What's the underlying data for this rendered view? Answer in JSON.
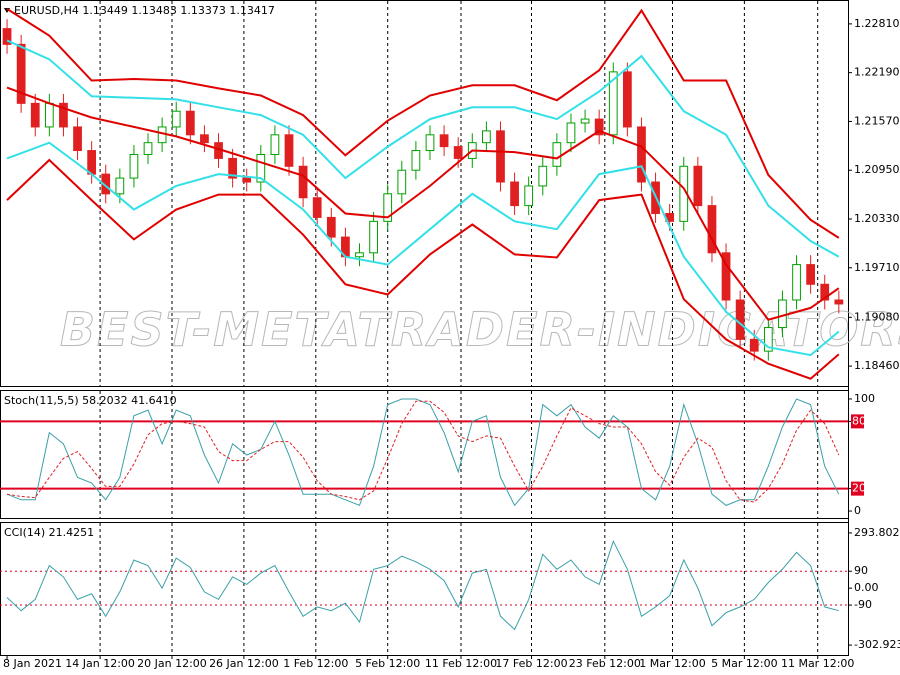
{
  "chart_data": [
    {
      "type": "candlestick",
      "title": "EURUSD,H4 1.13449 1.13483 1.13373 1.13417",
      "watermark": "BEST-METATRADER-INDICATORS.COM",
      "up_color": "#00a000",
      "down_color": "#e02020",
      "open": [
        1.2275,
        1.2255,
        1.218,
        1.215,
        1.218,
        1.215,
        1.212,
        1.209,
        1.2065,
        1.2085,
        1.2115,
        1.213,
        1.215,
        1.217,
        1.214,
        1.213,
        1.211,
        1.2085,
        1.208,
        1.2115,
        1.214,
        1.21,
        1.206,
        1.2035,
        1.201,
        1.1985,
        1.199,
        1.203,
        1.2065,
        1.2095,
        1.212,
        1.214,
        1.2125,
        1.211,
        1.213,
        1.2145,
        1.208,
        1.205,
        1.2075,
        1.21,
        1.213,
        1.2155,
        1.216,
        1.214,
        1.222,
        1.215,
        1.208,
        1.204,
        1.203,
        1.21,
        1.205,
        1.199,
        1.193,
        1.188,
        1.1865,
        1.1895,
        1.193,
        1.1975,
        1.195,
        1.193
      ],
      "high": [
        1.2287,
        1.2267,
        1.2192,
        1.2192,
        1.2192,
        1.2162,
        1.2132,
        1.2102,
        1.2097,
        1.2127,
        1.2142,
        1.2162,
        1.2182,
        1.2182,
        1.2152,
        1.2142,
        1.2122,
        1.2097,
        1.2127,
        1.2152,
        1.2152,
        1.2112,
        1.2072,
        1.2047,
        1.2022,
        1.2002,
        1.2042,
        1.2077,
        1.2107,
        1.2132,
        1.2152,
        1.2152,
        1.2137,
        1.2142,
        1.2157,
        1.2157,
        1.2092,
        1.2087,
        1.2112,
        1.2142,
        1.2167,
        1.2172,
        1.2172,
        1.2232,
        1.2232,
        1.2162,
        1.2092,
        1.2052,
        1.2112,
        1.2112,
        1.2062,
        1.2002,
        1.1942,
        1.1892,
        1.1907,
        1.1942,
        1.1987,
        1.1987,
        1.1962,
        1.1942
      ],
      "low": [
        1.2243,
        1.2168,
        1.2138,
        1.2138,
        1.2138,
        1.2108,
        1.2078,
        1.2053,
        1.2053,
        1.2073,
        1.2103,
        1.2118,
        1.2138,
        1.2128,
        1.2118,
        1.2098,
        1.2073,
        1.2068,
        1.2068,
        1.2103,
        1.2088,
        1.2048,
        1.2023,
        1.1998,
        1.1973,
        1.1973,
        1.1978,
        1.2018,
        1.2053,
        1.2083,
        1.2108,
        1.2113,
        1.2098,
        1.2098,
        1.2118,
        1.2068,
        1.2038,
        1.2038,
        1.2063,
        1.2088,
        1.2118,
        1.2143,
        1.2128,
        1.2128,
        1.2138,
        1.2068,
        1.2028,
        1.2018,
        1.2018,
        1.2038,
        1.1978,
        1.1918,
        1.1868,
        1.1853,
        1.1853,
        1.1883,
        1.1918,
        1.1938,
        1.1918,
        1.1913
      ],
      "close": [
        1.2255,
        1.218,
        1.215,
        1.218,
        1.215,
        1.212,
        1.209,
        1.2065,
        1.2085,
        1.2115,
        1.213,
        1.215,
        1.217,
        1.214,
        1.213,
        1.211,
        1.2085,
        1.208,
        1.2115,
        1.214,
        1.21,
        1.206,
        1.2035,
        1.201,
        1.1985,
        1.199,
        1.203,
        1.2065,
        1.2095,
        1.212,
        1.214,
        1.2125,
        1.211,
        1.213,
        1.2145,
        1.208,
        1.205,
        1.2075,
        1.21,
        1.213,
        1.2155,
        1.216,
        1.214,
        1.222,
        1.215,
        1.208,
        1.204,
        1.203,
        1.21,
        1.205,
        1.199,
        1.193,
        1.188,
        1.1865,
        1.1895,
        1.193,
        1.1975,
        1.195,
        1.193,
        1.1925
      ],
      "overlay": {
        "x": [
          0,
          3,
          6,
          9,
          12,
          15,
          18,
          21,
          24,
          27,
          30,
          33,
          36,
          39,
          42,
          45,
          48,
          51,
          54,
          57,
          59
        ],
        "series": [
          {
            "color": "#e00000",
            "values": [
              1.23,
              1.2266,
              1.2209,
              1.2211,
              1.2209,
              1.2199,
              1.219,
              1.2165,
              1.2114,
              1.2158,
              1.219,
              1.2203,
              1.2203,
              1.2184,
              1.2222,
              1.2298,
              1.2209,
              1.2209,
              1.2089,
              1.2032,
              1.2009
            ]
          },
          {
            "color": "#33e0e8",
            "values": [
              1.226,
              1.2236,
              1.2189,
              1.2187,
              1.2185,
              1.2175,
              1.2165,
              1.214,
              1.2085,
              1.2125,
              1.216,
              1.2175,
              1.2175,
              1.216,
              1.2195,
              1.224,
              1.217,
              1.214,
              1.205,
              1.2005,
              1.1985
            ]
          },
          {
            "color": "#e00000",
            "values": [
              1.22,
              1.218,
              1.2162,
              1.215,
              1.2138,
              1.2122,
              1.2105,
              1.2088,
              1.204,
              1.2035,
              1.2075,
              1.212,
              1.2118,
              1.211,
              1.2145,
              1.2125,
              1.2072,
              1.1975,
              1.1905,
              1.192,
              1.1945
            ]
          },
          {
            "color": "#33e0e8",
            "values": [
              1.211,
              1.213,
              1.209,
              1.2045,
              1.2075,
              1.209,
              1.2085,
              1.2045,
              1.1985,
              1.1975,
              1.202,
              1.2065,
              1.203,
              1.202,
              1.209,
              1.21,
              1.1985,
              1.1915,
              1.187,
              1.186,
              1.189
            ]
          },
          {
            "color": "#e00000",
            "values": [
              1.2057,
              1.2108,
              1.2057,
              1.2007,
              1.2045,
              1.2064,
              1.2064,
              1.2013,
              1.195,
              1.1937,
              1.1988,
              1.2026,
              1.1988,
              1.1984,
              1.2057,
              1.2064,
              1.1931,
              1.188,
              1.1849,
              1.183,
              1.1861
            ]
          }
        ]
      },
      "xlim": [
        -0.5,
        59.65
      ],
      "ylim": [
        1.18207,
        1.23101
      ],
      "yticks": [
        {
          "value": 1.2281,
          "label": "1.22810"
        },
        {
          "value": 1.2219,
          "label": "1.22190"
        },
        {
          "value": 1.2157,
          "label": "1.21570"
        },
        {
          "value": 1.2095,
          "label": "1.20950"
        },
        {
          "value": 1.2033,
          "label": "1.20330"
        },
        {
          "value": 1.1971,
          "label": "1.19710"
        },
        {
          "value": 1.1908,
          "label": "1.19080"
        },
        {
          "value": 1.1846,
          "label": "1.18460"
        }
      ],
      "xticks": [
        {
          "value": 0,
          "label": "8 Jan 2021"
        },
        {
          "value": 6.6,
          "label": "14 Jan 12:00"
        },
        {
          "value": 11.7,
          "label": "20 Jan 12:00"
        },
        {
          "value": 16.8,
          "label": "26 Jan 12:00"
        },
        {
          "value": 21.9,
          "label": "1 Feb 12:00"
        },
        {
          "value": 27.0,
          "label": "5 Feb 12:00"
        },
        {
          "value": 32.2,
          "label": "11 Feb 12:00"
        },
        {
          "value": 37.2,
          "label": "17 Feb 12:00"
        },
        {
          "value": 42.4,
          "label": "23 Feb 12:00"
        },
        {
          "value": 47.2,
          "label": "1 Mar 12:00"
        },
        {
          "value": 52.3,
          "label": "5 Mar 12:00"
        },
        {
          "value": 57.5,
          "label": "11 Mar 12:00"
        }
      ]
    },
    {
      "type": "line",
      "title": "Stoch(11,5,5) 58.2032 41.6410",
      "series": [
        {
          "color": "#3aa0a8",
          "style": "solid",
          "values": [
            15,
            10,
            10,
            70,
            60,
            30,
            25,
            10,
            30,
            85,
            90,
            60,
            90,
            85,
            50,
            25,
            60,
            50,
            55,
            80,
            50,
            15,
            15,
            15,
            10,
            5,
            40,
            95,
            100,
            100,
            95,
            70,
            35,
            80,
            85,
            30,
            5,
            20,
            95,
            85,
            95,
            75,
            65,
            85,
            75,
            20,
            10,
            40,
            95,
            60,
            15,
            5,
            10,
            10,
            40,
            75,
            100,
            95,
            40,
            15
          ]
        },
        {
          "color": "#e02020",
          "style": "dashed",
          "values": [
            15,
            13,
            12,
            30,
            47,
            53,
            38,
            22,
            22,
            42,
            68,
            78,
            80,
            78,
            75,
            53,
            45,
            45,
            55,
            62,
            62,
            48,
            27,
            15,
            13,
            10,
            18,
            47,
            78,
            98,
            98,
            88,
            67,
            62,
            67,
            65,
            40,
            18,
            40,
            67,
            92,
            85,
            78,
            75,
            75,
            60,
            35,
            23,
            48,
            65,
            57,
            27,
            10,
            8,
            20,
            42,
            72,
            90,
            78,
            50
          ]
        }
      ],
      "xlim": [
        -0.5,
        59.65
      ],
      "ylim": [
        -6.2,
        107.1
      ],
      "yticks": [
        100,
        80,
        20,
        0
      ],
      "levels": [
        80,
        20
      ],
      "level_color": "#e00020",
      "level_style": "solid",
      "level_boxes": true
    },
    {
      "type": "line",
      "title": "CCI(14) 21.4251",
      "series": [
        {
          "color": "#3aa0a8",
          "style": "solid",
          "values": [
            -50,
            -120,
            -60,
            120,
            60,
            -60,
            -30,
            -150,
            -20,
            150,
            120,
            0,
            160,
            110,
            -20,
            -60,
            60,
            20,
            80,
            120,
            -20,
            -150,
            -100,
            -120,
            -80,
            -180,
            100,
            120,
            170,
            140,
            100,
            40,
            -100,
            80,
            100,
            -150,
            -220,
            -60,
            180,
            100,
            150,
            60,
            20,
            250,
            100,
            -150,
            -100,
            -40,
            150,
            0,
            -200,
            -130,
            -100,
            -60,
            30,
            100,
            190,
            120,
            -100,
            -120
          ]
        }
      ],
      "xlim": [
        -0.5,
        59.65
      ],
      "ylim": [
        -355.7,
        346.6
      ],
      "yticks": [
        293.8027,
        90,
        {
          "value": 0,
          "label": "0.00"
        },
        -90,
        -302.9234
      ],
      "levels": [
        90,
        -90
      ],
      "level_color": "#e00020",
      "level_style": "dotted",
      "level_boxes": false
    }
  ]
}
